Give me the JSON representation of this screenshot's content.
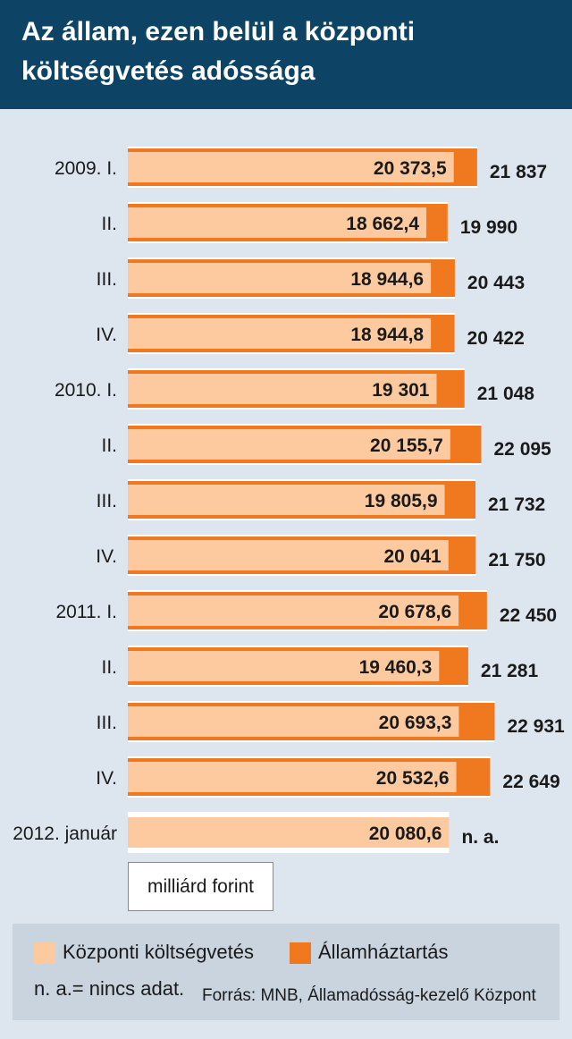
{
  "title": "Az állam, ezen belül a központi költségvetés adóssága",
  "unit_label": "milliárd forint",
  "legend": {
    "central": "Központi költségvetés",
    "general": "Államháztartás"
  },
  "note": "n. a.= nincs adat.",
  "source": "Forrás: MNB, Államadósság-kezelő Központ",
  "colors": {
    "header_bg": "#0d4466",
    "background": "#dde5ee",
    "central_bar": "#fdcaa0",
    "general_bar": "#f0781e",
    "legend_bg": "#c9d4df"
  },
  "chart_data": {
    "type": "bar",
    "orientation": "horizontal",
    "categories": [
      "2009. I.",
      "II.",
      "III.",
      "IV.",
      "2010. I.",
      "II.",
      "III.",
      "IV.",
      "2011. I.",
      "II.",
      "III.",
      "IV.",
      "2012. január"
    ],
    "series": [
      {
        "name": "Központi költségvetés",
        "values": [
          20373.5,
          18662.4,
          18944.6,
          18944.8,
          19301,
          20155.7,
          19805.9,
          20041,
          20678.6,
          19460.3,
          20693.3,
          20532.6,
          20080.6
        ],
        "labels": [
          "20 373,5",
          "18 662,4",
          "18 944,6",
          "18 944,8",
          "19 301",
          "20 155,7",
          "19 805,9",
          "20 041",
          "20 678,6",
          "19 460,3",
          "20 693,3",
          "20 532,6",
          "20 080,6"
        ]
      },
      {
        "name": "Államháztartás",
        "values": [
          21837,
          19990,
          20443,
          20422,
          21048,
          22095,
          21732,
          21750,
          22450,
          21281,
          22931,
          22649,
          null
        ],
        "labels": [
          "21 837",
          "19 990",
          "20 443",
          "20 422",
          "21 048",
          "22 095",
          "21 732",
          "21 750",
          "22 450",
          "21 281",
          "22 931",
          "22 649",
          "n. a."
        ]
      }
    ]
  }
}
